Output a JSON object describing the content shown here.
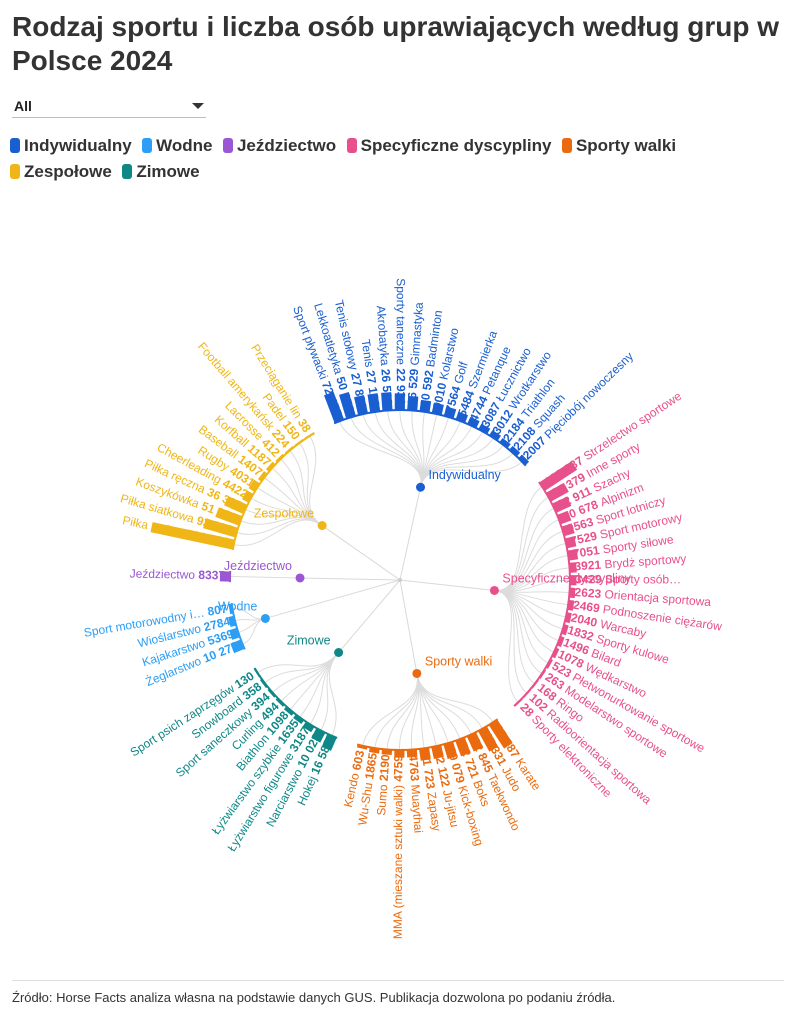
{
  "title": "Rodzaj sportu i liczba osób uprawiających według grup w Polsce 2024",
  "filter": {
    "selected": "All"
  },
  "source": "Źródło: Horse Facts analiza własna na podstawie danych GUS. Publikacja dozwolona po podaniu źródła.",
  "legend": [
    {
      "label": "Indywidualny",
      "color": "#1a5fd1"
    },
    {
      "label": "Wodne",
      "color": "#2c9ef5"
    },
    {
      "label": "Jeździectwo",
      "color": "#9b57d3"
    },
    {
      "label": "Specyficzne dyscypliny",
      "color": "#e8508c"
    },
    {
      "label": "Sporty walki",
      "color": "#ea6b0f"
    },
    {
      "label": "Zespołowe",
      "color": "#f0b617"
    },
    {
      "label": "Zimowe",
      "color": "#108787"
    }
  ],
  "chart_data": {
    "type": "radial-tree",
    "groups": [
      {
        "name": "Indywidualny",
        "label": "Indywidualny",
        "color": "#1a5fd1",
        "items": [
          {
            "label": "Sport pływacki",
            "shown": "Sport pływacki",
            "value": 72455,
            "display": "72 455"
          },
          {
            "label": "Lekkoatletyka",
            "shown": "Lekkoatletyka",
            "value": 50659,
            "display": "50 659"
          },
          {
            "label": "Tenis stołowy",
            "shown": "Tenis stołowy",
            "value": 27881,
            "display": "27 881"
          },
          {
            "label": "Tenis",
            "shown": "Tenis",
            "value": 27182,
            "display": "27 182"
          },
          {
            "label": "Akrobatyka",
            "shown": "Akrobatyka",
            "value": 26582,
            "display": "26 582"
          },
          {
            "label": "Sporty taneczne",
            "shown": "Sporty taneczne",
            "value": 22936,
            "display": "22 936"
          },
          {
            "label": "Gimnastyka",
            "shown": "Gimnastyka",
            "value": 16529,
            "display": "16 529"
          },
          {
            "label": "Badminton",
            "shown": "Badminton",
            "value": 10592,
            "display": "10 592"
          },
          {
            "label": "Kolarstwo",
            "shown": "Kolarstwo",
            "value": 9010,
            "display": "9010"
          },
          {
            "label": "Golf",
            "shown": "Golf",
            "value": 7564,
            "display": "7564"
          },
          {
            "label": "Szermierka",
            "shown": "Szermierka",
            "value": 5484,
            "display": "5484"
          },
          {
            "label": "Petanque",
            "shown": "Petanque",
            "value": 4744,
            "display": "4744"
          },
          {
            "label": "Łucznictwo",
            "shown": "Łucznictwo",
            "value": 3087,
            "display": "3087"
          },
          {
            "label": "Wrotkarstwo",
            "shown": "Wrotkarstwo",
            "value": 3012,
            "display": "3012"
          },
          {
            "label": "Triathlon",
            "shown": "Triathlon",
            "value": 2184,
            "display": "2184"
          },
          {
            "label": "Squash",
            "shown": "Squash",
            "value": 2108,
            "display": "2108"
          },
          {
            "label": "Pięciobój nowoczesny",
            "shown": "Pięciobój nowoczesny",
            "value": 2007,
            "display": "2007"
          }
        ]
      },
      {
        "name": "Specyficzne dyscypliny",
        "label": "Specyficzne dyscypliny",
        "color": "#e8508c",
        "items": [
          {
            "label": "Strzelectwo sportowe",
            "shown": "Strzelectwo sportowe",
            "value": 122887,
            "display": "122 887"
          },
          {
            "label": "Inne sporty",
            "shown": "Inne sporty",
            "value": 34379,
            "display": "34 379"
          },
          {
            "label": "Szachy",
            "shown": "Szachy",
            "value": 22911,
            "display": "22 911"
          },
          {
            "label": "Alpinizm",
            "shown": "Alpinizm",
            "value": 10678,
            "display": "10 678"
          },
          {
            "label": "Sport lotniczy",
            "shown": "Sport lotniczy",
            "value": 9563,
            "display": "9563"
          },
          {
            "label": "Sport motorowy",
            "shown": "Sport motorowy",
            "value": 7529,
            "display": "7529"
          },
          {
            "label": "Sporty siłowe",
            "shown": "Sporty siłowe",
            "value": 7051,
            "display": "7051"
          },
          {
            "label": "Brydż sportowy",
            "shown": "Brydż sportowy",
            "value": 3921,
            "display": "3921"
          },
          {
            "label": "Sporty osób…",
            "shown": "Sporty osób…",
            "value": 3429,
            "display": "3429"
          },
          {
            "label": "Orientacja sportowa",
            "shown": "Orientacja sportowa",
            "value": 2623,
            "display": "2623"
          },
          {
            "label": "Podnoszenie ciężarów",
            "shown": "Podnoszenie ciężarów",
            "value": 2469,
            "display": "2469"
          },
          {
            "label": "Warcaby",
            "shown": "Warcaby",
            "value": 2040,
            "display": "2040"
          },
          {
            "label": "Sporty kulowe",
            "shown": "Sporty kulowe",
            "value": 1832,
            "display": "1832"
          },
          {
            "label": "Bilard",
            "shown": "Bilard",
            "value": 1496,
            "display": "1496"
          },
          {
            "label": "Wędkarstwo",
            "shown": "Wędkarstwo",
            "value": 1078,
            "display": "1078"
          },
          {
            "label": "Płetwonurkowanie sportowe",
            "shown": "Płetwonurkowanie sportowe",
            "value": 523,
            "display": "523"
          },
          {
            "label": "Modelarstwo sportowe",
            "shown": "Modelarstwo sportowe",
            "value": 263,
            "display": "263"
          },
          {
            "label": "Ringo",
            "shown": "Ringo",
            "value": 168,
            "display": "168"
          },
          {
            "label": "Radioorientacja sportowa",
            "shown": "Radioorientacja sportowa",
            "value": 102,
            "display": "102"
          },
          {
            "label": "Sporty elektroniczne",
            "shown": "Sporty elektroniczne",
            "value": 28,
            "display": "28"
          }
        ]
      },
      {
        "name": "Sporty walki",
        "label": "Sporty walki",
        "color": "#ea6b0f",
        "items": [
          {
            "label": "Karate",
            "shown": "Karate",
            "value": 65087,
            "display": "65 087"
          },
          {
            "label": "Judo",
            "shown": "Judo",
            "value": 45331,
            "display": "45 331"
          },
          {
            "label": "Taekwondo",
            "shown": "Taekwondo",
            "value": 22845,
            "display": "22 845"
          },
          {
            "label": "Boks",
            "shown": "Boks",
            "value": 22721,
            "display": "22 721"
          },
          {
            "label": "Kick-boxing",
            "shown": "Kick-boxing",
            "value": 19079,
            "display": "19 079"
          },
          {
            "label": "Ju-jitsu",
            "shown": "Ju-jitsu",
            "value": 12122,
            "display": "12 122"
          },
          {
            "label": "Zapasy",
            "shown": "Zapasy",
            "value": 11723,
            "display": "11 723"
          },
          {
            "label": "Muaythai",
            "shown": "Muaythai",
            "value": 4763,
            "display": "4763"
          },
          {
            "label": "MMA (mieszane sztuki walki)",
            "shown": "MMA (mieszane sztuki walki)",
            "value": 4759,
            "display": "4759"
          },
          {
            "label": "Sumo",
            "shown": "Sumo",
            "value": 2190,
            "display": "2190"
          },
          {
            "label": "Wu-Shu",
            "shown": "Wu-Shu",
            "value": 1865,
            "display": "1865"
          },
          {
            "label": "Kendo",
            "shown": "Kendo",
            "value": 603,
            "display": "603"
          }
        ]
      },
      {
        "name": "Zimowe",
        "label": "Zimowe",
        "color": "#108787",
        "items": [
          {
            "label": "Hokej",
            "shown": "Hokej",
            "value": 16583,
            "display": "16 583"
          },
          {
            "label": "Narciarstwo",
            "shown": "Narciarstwo",
            "value": 10023,
            "display": "10 023"
          },
          {
            "label": "Łyżwiarstwo figurowe",
            "shown": "Łyżwiarstwo figurowe",
            "value": 3187,
            "display": "3187"
          },
          {
            "label": "Łyżwiarstwo szybkie",
            "shown": "Łyżwiarstwo szybkie",
            "value": 1635,
            "display": "1635"
          },
          {
            "label": "Biathlon",
            "shown": "Biathlon",
            "value": 1098,
            "display": "1098"
          },
          {
            "label": "Curling",
            "shown": "Curling",
            "value": 494,
            "display": "494"
          },
          {
            "label": "Sport saneczkowy",
            "shown": "Sport saneczkowy",
            "value": 394,
            "display": "394"
          },
          {
            "label": "Snowboard",
            "shown": "Snowboard",
            "value": 358,
            "display": "358"
          },
          {
            "label": "Sport psich zaprzęgów",
            "shown": "Sport psich zaprzęgów",
            "value": 130,
            "display": "130"
          }
        ]
      },
      {
        "name": "Wodne",
        "label": "Wodne",
        "color": "#2c9ef5",
        "items": [
          {
            "label": "Żeglarstwo",
            "shown": "Żeglarstwo",
            "value": 10272,
            "display": "10 272"
          },
          {
            "label": "Kajakarstwo",
            "shown": "Kajakarstwo",
            "value": 5369,
            "display": "5369"
          },
          {
            "label": "Wioślarstwo",
            "shown": "Wioślarstwo",
            "value": 2784,
            "display": "2784"
          },
          {
            "label": "Sport motorowodny i…",
            "shown": "Sport motorowodny i…",
            "value": 807,
            "display": "807"
          }
        ]
      },
      {
        "name": "Jeździectwo",
        "label": "Jeździectwo",
        "color": "#9b57d3",
        "items": [
          {
            "label": "Jeździectwo",
            "shown": "Jeździectwo",
            "value": 8337,
            "display": "8337"
          }
        ]
      },
      {
        "name": "Zespołowe",
        "label": "Zespołowe",
        "color": "#f0b617",
        "items": [
          {
            "label": "Piłka nożna",
            "shown": "Piłka nożna",
            "value": 581773,
            "display": "581 773"
          },
          {
            "label": "Piłka siatkowa",
            "shown": "Piłka siatkowa",
            "value": 93227,
            "display": "93 227"
          },
          {
            "label": "Koszykówka",
            "shown": "Koszykówka",
            "value": 51991,
            "display": "51 991"
          },
          {
            "label": "Piłka ręczna",
            "shown": "Piłka ręczna",
            "value": 36365,
            "display": "36 365"
          },
          {
            "label": "Cheerleading",
            "shown": "Cheerleading",
            "value": 4422,
            "display": "4422"
          },
          {
            "label": "Rugby",
            "shown": "Rugby",
            "value": 4031,
            "display": "4031"
          },
          {
            "label": "Baseball",
            "shown": "Baseball",
            "value": 1407,
            "display": "1407"
          },
          {
            "label": "Korfball",
            "shown": "Korfball",
            "value": 1187,
            "display": "1187"
          },
          {
            "label": "Lacrosse",
            "shown": "Lacrosse",
            "value": 412,
            "display": "412"
          },
          {
            "label": "Football amerykański",
            "shown": "Football amerykańsk",
            "value": 224,
            "display": "224"
          },
          {
            "label": "Padel",
            "shown": "Padel",
            "value": 150,
            "display": "150"
          },
          {
            "label": "Przeciąganie liny",
            "shown": "Przeciąganie lin",
            "value": 38,
            "display": "38"
          }
        ]
      }
    ]
  }
}
